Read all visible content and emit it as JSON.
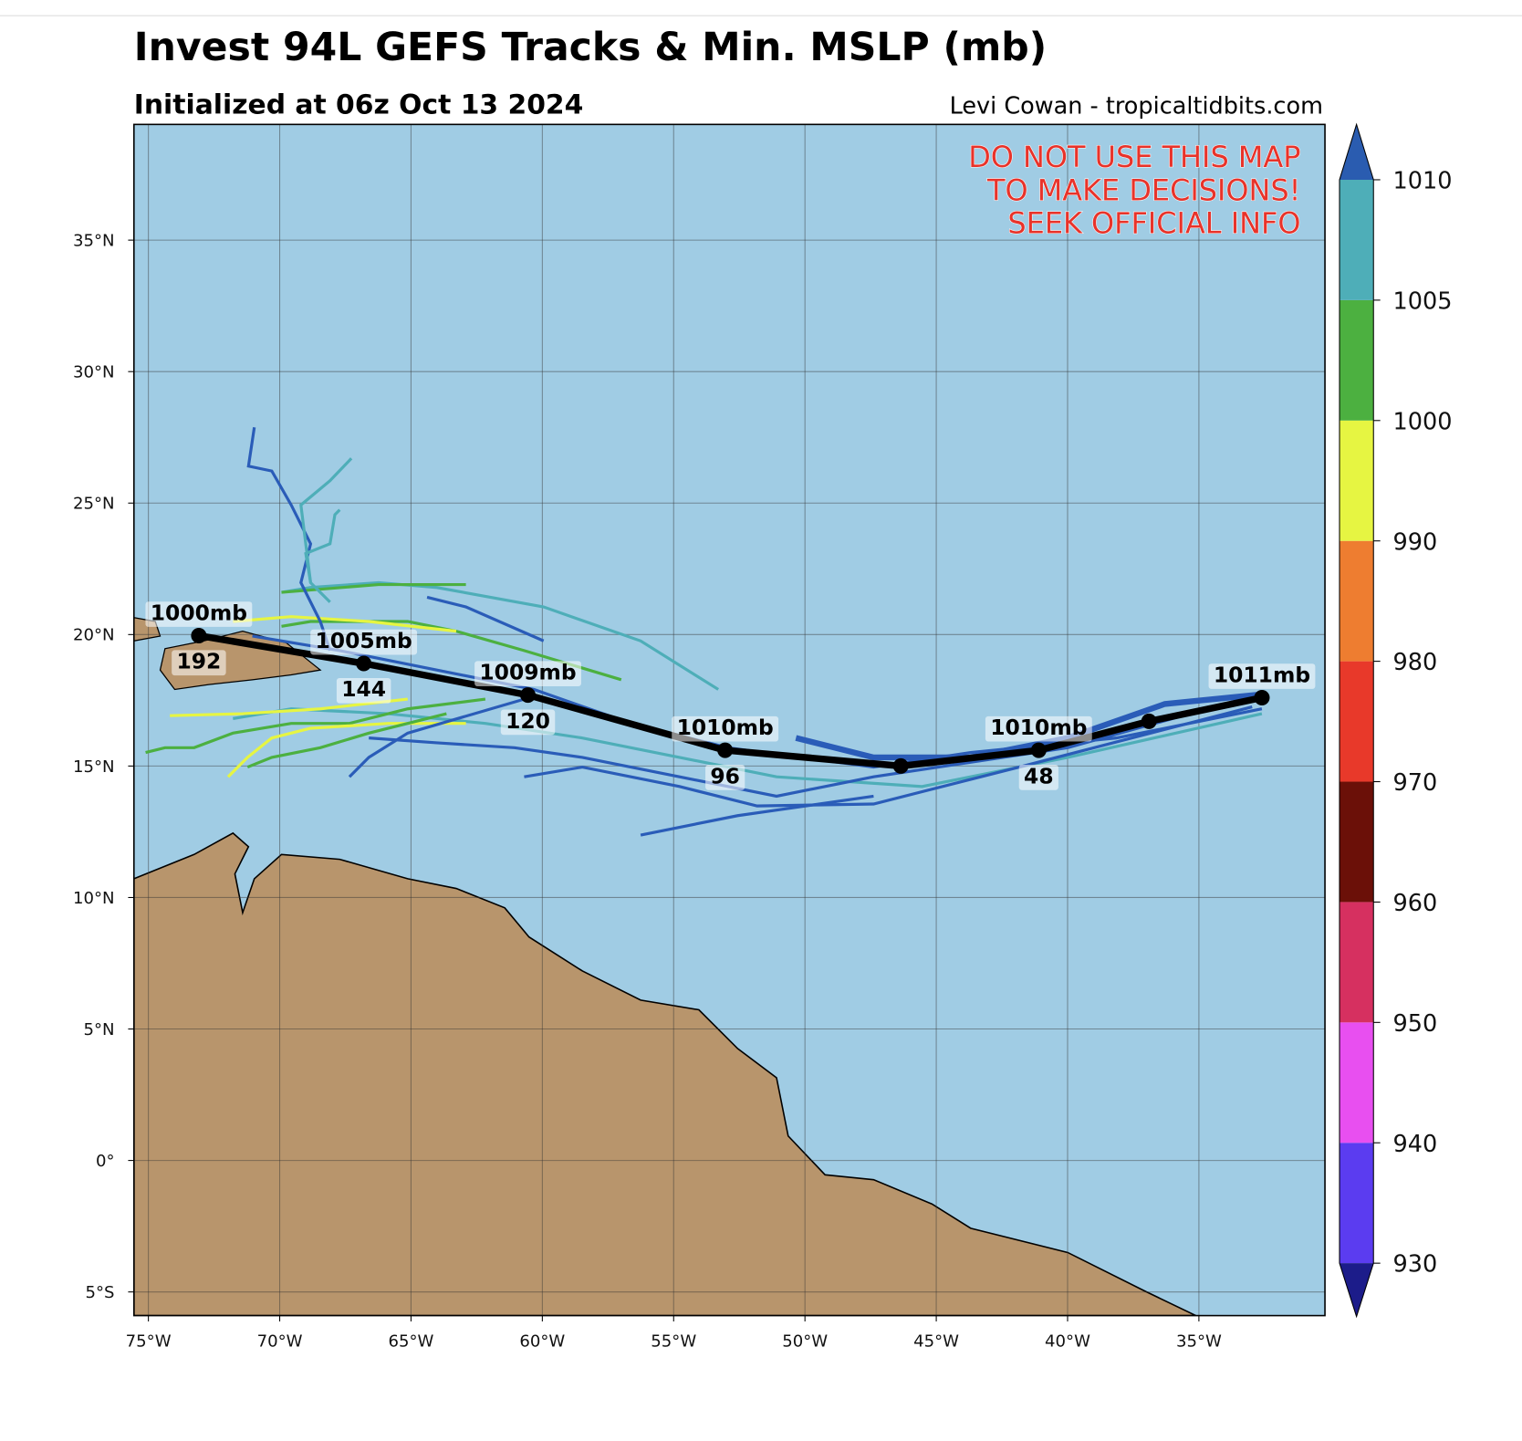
{
  "map": {
    "title": "Invest 94L GEFS Tracks & Min. MSLP (mb)",
    "subtitle": "Initialized at 06z Oct 13 2024",
    "credit": "Levi Cowan - tropicaltidbits.com",
    "warning": [
      "DO NOT USE THIS MAP",
      "TO MAKE DECISIONS!",
      "SEEK OFFICIAL INFO"
    ],
    "lonlim": [
      -75.55,
      -30.2
    ],
    "latlim": [
      -5.9,
      39.4
    ],
    "lonticks": [
      {
        "value": -75,
        "label": "75°W"
      },
      {
        "value": -70,
        "label": "70°W"
      },
      {
        "value": -65,
        "label": "65°W"
      },
      {
        "value": -60,
        "label": "60°W"
      },
      {
        "value": -55,
        "label": "55°W"
      },
      {
        "value": -50,
        "label": "50°W"
      },
      {
        "value": -45,
        "label": "45°W"
      },
      {
        "value": -40,
        "label": "40°W"
      },
      {
        "value": -35,
        "label": "35°W"
      }
    ],
    "latticks": [
      {
        "value": -5,
        "label": "5°S"
      },
      {
        "value": 0,
        "label": "0°"
      },
      {
        "value": 5,
        "label": "5°N"
      },
      {
        "value": 10,
        "label": "10°N"
      },
      {
        "value": 15,
        "label": "15°N"
      },
      {
        "value": 20,
        "label": "20°N"
      },
      {
        "value": 25,
        "label": "25°N"
      },
      {
        "value": 30,
        "label": "30°N"
      },
      {
        "value": 35,
        "label": "35°N"
      }
    ],
    "grid": true,
    "mean_track": [
      {
        "lon": -73.08,
        "lat": 19.96,
        "pressure_label": "1000mb",
        "hour_label": "192"
      },
      {
        "lon": -66.8,
        "lat": 18.9,
        "pressure_label": "1005mb",
        "hour_label": "144"
      },
      {
        "lon": -60.55,
        "lat": 17.7,
        "pressure_label": "1009mb",
        "hour_label": "120"
      },
      {
        "lon": -53.04,
        "lat": 15.6,
        "pressure_label": "1010mb",
        "hour_label": "96"
      },
      {
        "lon": -46.35,
        "lat": 15.0
      },
      {
        "lon": -41.1,
        "lat": 15.6,
        "pressure_label": "1010mb",
        "hour_label": "48"
      },
      {
        "lon": -36.9,
        "lat": 16.7
      },
      {
        "lon": -32.6,
        "lat": 17.6,
        "pressure_label": "1011mb"
      }
    ],
    "colorbar": {
      "levels": [
        930,
        940,
        950,
        960,
        970,
        980,
        990,
        1000,
        1005,
        1010
      ],
      "colors": [
        "#5b3cf0",
        "#e84ff0",
        "#d63060",
        "#6b1008",
        "#e8392a",
        "#ee7d30",
        "#e6f542",
        "#4cb040",
        "#4eaeb8"
      ],
      "under_color": "#1c1c8a",
      "over_color": "#2a5cb0"
    }
  }
}
